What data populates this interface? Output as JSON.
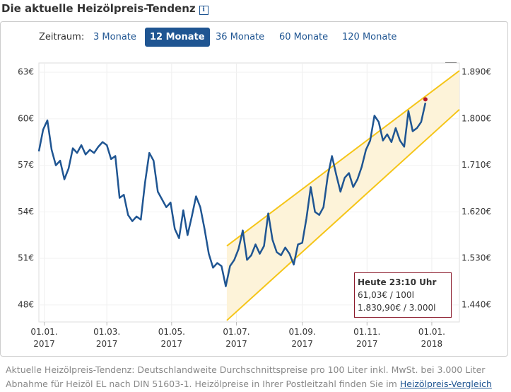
{
  "header": {
    "title": "Die aktuelle Heizölpreis-Tendenz",
    "info_icon": "i"
  },
  "range_selector": {
    "label": "Zeitraum:",
    "options": [
      "3 Monate",
      "12 Monate",
      "36 Monate",
      "60 Monate",
      "120 Monate"
    ],
    "active": 1
  },
  "chart_data": {
    "type": "line",
    "x": [
      "2016-12-27",
      "2016-12-31",
      "2017-01-04",
      "2017-01-08",
      "2017-01-12",
      "2017-01-16",
      "2017-01-20",
      "2017-01-24",
      "2017-01-28",
      "2017-02-01",
      "2017-02-05",
      "2017-02-09",
      "2017-02-13",
      "2017-02-17",
      "2017-02-21",
      "2017-02-25",
      "2017-03-01",
      "2017-03-05",
      "2017-03-09",
      "2017-03-13",
      "2017-03-17",
      "2017-03-21",
      "2017-03-25",
      "2017-03-29",
      "2017-04-02",
      "2017-04-06",
      "2017-04-10",
      "2017-04-14",
      "2017-04-18",
      "2017-04-22",
      "2017-04-26",
      "2017-04-30",
      "2017-05-04",
      "2017-05-08",
      "2017-05-12",
      "2017-05-16",
      "2017-05-20",
      "2017-05-24",
      "2017-05-28",
      "2017-06-01",
      "2017-06-05",
      "2017-06-09",
      "2017-06-13",
      "2017-06-17",
      "2017-06-21",
      "2017-06-25",
      "2017-06-29",
      "2017-07-03",
      "2017-07-07",
      "2017-07-11",
      "2017-07-15",
      "2017-07-19",
      "2017-07-23",
      "2017-07-27",
      "2017-07-31",
      "2017-08-04",
      "2017-08-08",
      "2017-08-12",
      "2017-08-16",
      "2017-08-20",
      "2017-08-24",
      "2017-08-28",
      "2017-09-01",
      "2017-09-05",
      "2017-09-09",
      "2017-09-13",
      "2017-09-17",
      "2017-09-21",
      "2017-09-25",
      "2017-09-29",
      "2017-10-03",
      "2017-10-07",
      "2017-10-11",
      "2017-10-15",
      "2017-10-19",
      "2017-10-23",
      "2017-10-27",
      "2017-10-31",
      "2017-11-04",
      "2017-11-08",
      "2017-11-12",
      "2017-11-16",
      "2017-11-20",
      "2017-11-24",
      "2017-11-28",
      "2017-12-02",
      "2017-12-06",
      "2017-12-10",
      "2017-12-14",
      "2017-12-18",
      "2017-12-22",
      "2017-12-26"
    ],
    "series": [
      {
        "color": "#1f5592",
        "values": [
          57.9,
          59.3,
          59.9,
          58.0,
          57.0,
          57.3,
          56.1,
          56.8,
          58.1,
          57.8,
          58.3,
          57.7,
          58.0,
          57.8,
          58.2,
          58.5,
          58.3,
          57.4,
          57.6,
          54.9,
          55.1,
          53.8,
          53.4,
          53.7,
          53.5,
          55.9,
          57.8,
          57.3,
          55.3,
          54.8,
          54.3,
          54.6,
          52.9,
          52.3,
          54.1,
          52.5,
          53.7,
          55.0,
          54.3,
          52.9,
          51.3,
          50.4,
          50.7,
          50.5,
          49.2,
          50.5,
          50.9,
          51.6,
          52.8,
          50.9,
          51.2,
          51.9,
          51.3,
          51.8,
          53.9,
          52.2,
          51.4,
          51.2,
          51.7,
          51.3,
          50.6,
          51.9,
          52.0,
          53.6,
          55.6,
          54.0,
          53.8,
          54.3,
          56.3,
          57.6,
          56.4,
          55.3,
          56.2,
          56.5,
          55.6,
          56.1,
          56.9,
          58.0,
          58.6,
          60.2,
          59.8,
          58.6,
          59.0,
          58.5,
          59.4,
          58.6,
          58.2,
          60.5,
          59.2,
          59.4,
          59.8,
          61.03
        ]
      }
    ],
    "band": {
      "x": [
        "2017-06-22",
        "2018-01-27"
      ],
      "upper": [
        51.8,
        63.1
      ],
      "lower": [
        47.0,
        60.6
      ],
      "color": "#f5c518",
      "fill": "#fdf3d9"
    },
    "xlim": [
      "2016-12-27",
      "2018-01-27"
    ],
    "xticks": [
      {
        "value": "2017-01-01",
        "label": "01.01. 2017"
      },
      {
        "value": "2017-03-01",
        "label": "01.03. 2017"
      },
      {
        "value": "2017-05-01",
        "label": "01.05. 2017"
      },
      {
        "value": "2017-07-01",
        "label": "01.07. 2017"
      },
      {
        "value": "2017-09-01",
        "label": "01.09. 2017"
      },
      {
        "value": "2017-11-01",
        "label": "01.11. 2017"
      },
      {
        "value": "2018-01-01",
        "label": "01.01. 2018"
      }
    ],
    "ylim": [
      46.9,
      63.6
    ],
    "yticks": [
      {
        "value": 63,
        "label": "63€"
      },
      {
        "value": 60,
        "label": "60€"
      },
      {
        "value": 57,
        "label": "57€"
      },
      {
        "value": 54,
        "label": "54€"
      },
      {
        "value": 51,
        "label": "51€"
      },
      {
        "value": 48,
        "label": "48€"
      }
    ],
    "y2lim": [
      1407,
      1908
    ],
    "y2ticks": [
      {
        "value": 1890,
        "label": "1.890€"
      },
      {
        "value": 1800,
        "label": "1.800€"
      },
      {
        "value": 1710,
        "label": "1.710€"
      },
      {
        "value": 1620,
        "label": "1.620€"
      },
      {
        "value": 1530,
        "label": "1.530€"
      },
      {
        "value": 1440,
        "label": "1.440€"
      }
    ],
    "grid": true
  },
  "tooltip": {
    "title": "Heute 23:10 Uhr",
    "lines": [
      "61,03€ / 100l",
      "1.830,90€ / 3.000l"
    ]
  },
  "footer": {
    "text": "Aktuelle Heizölpreis-Tendenz: Deutschlandweite Durchschnittspreise pro 100 Liter inkl. MwSt. bei 3.000 Liter Abnahme für Heizöl EL nach DIN 51603-1. Heizölpreise in Ihrer Postleitzahl finden Sie im ",
    "link": "Heizölpreis-Vergleich"
  }
}
